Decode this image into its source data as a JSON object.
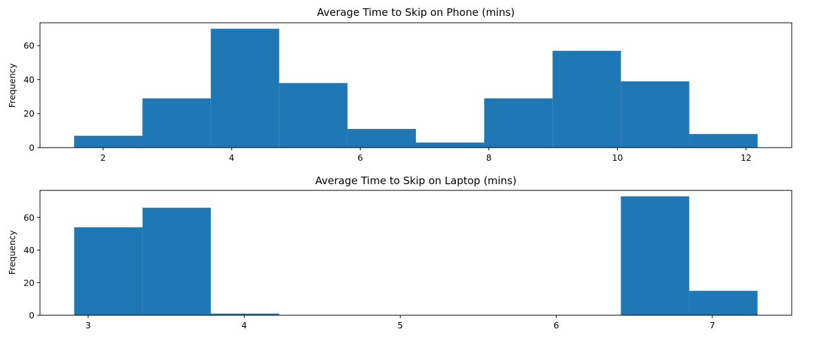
{
  "chart_data": [
    {
      "type": "bar",
      "title": "Average Time to Skip on Phone (mins)",
      "xlabel": "",
      "ylabel": "Frequency",
      "color": "#1f77b4",
      "bin_edges": [
        1.55,
        2.613,
        3.676,
        4.739,
        5.802,
        6.865,
        7.928,
        8.991,
        10.054,
        11.117,
        12.18
      ],
      "values": [
        7,
        29,
        70,
        38,
        11,
        3,
        29,
        57,
        39,
        8
      ],
      "xlim": [
        1.02,
        12.71
      ],
      "ylim": [
        0,
        73.5
      ],
      "xticks": [
        2,
        4,
        6,
        8,
        10,
        12
      ],
      "xtick_labels": [
        "2",
        "4",
        "6",
        "8",
        "10",
        "12"
      ],
      "yticks": [
        0,
        20,
        40,
        60
      ],
      "ytick_labels": [
        "0",
        "20",
        "40",
        "60"
      ],
      "grid": false,
      "legend": "none"
    },
    {
      "type": "bar",
      "title": "Average Time to Skip on Laptop (mins)",
      "xlabel": "",
      "ylabel": "Frequency",
      "color": "#1f77b4",
      "bin_edges": [
        2.91,
        3.348,
        3.786,
        4.224,
        4.662,
        5.1,
        5.538,
        5.976,
        6.414,
        6.852,
        7.29
      ],
      "values": [
        54,
        66,
        1,
        0,
        0,
        0,
        0,
        0,
        73,
        15
      ],
      "xlim": [
        2.691,
        7.509
      ],
      "ylim": [
        0,
        76.65
      ],
      "xticks": [
        3,
        4,
        5,
        6,
        7
      ],
      "xtick_labels": [
        "3",
        "4",
        "5",
        "6",
        "7"
      ],
      "yticks": [
        0,
        20,
        40,
        60
      ],
      "ytick_labels": [
        "0",
        "20",
        "40",
        "60"
      ],
      "grid": false,
      "legend": "none"
    }
  ]
}
